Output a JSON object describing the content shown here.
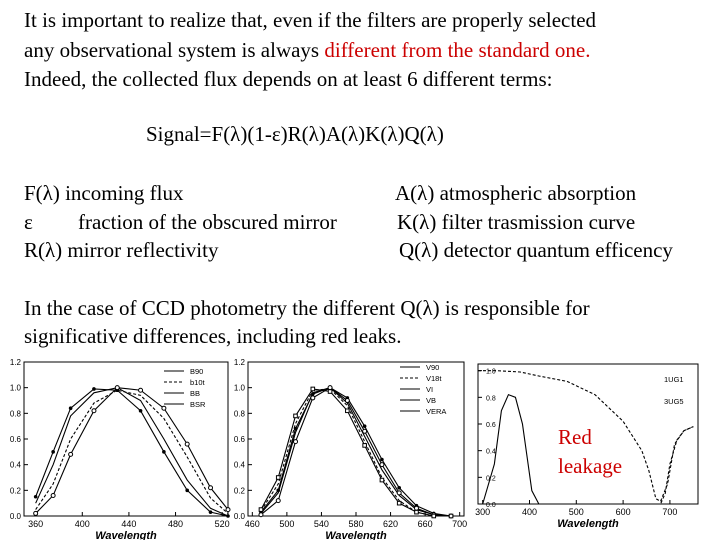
{
  "intro": {
    "line1": "It is important to realize that, even if the filters are properly selected",
    "line2_pre": "any observational system is always ",
    "line2_red": "different from the standard one.",
    "line3": "Indeed, the collected flux depends on at least 6 different terms:"
  },
  "formula": "Signal=F(λ)(1-ε)R(λ)A(λ)K(λ)Q(λ)",
  "terms": {
    "f": "F(λ)  incoming flux",
    "eps_sym": "ε",
    "eps_desc": "fraction of the obscured mirror",
    "r": "R(λ) mirror reflectivity",
    "a": "A(λ) atmospheric absorption",
    "k": "K(λ) filter trasmission curve",
    "q": "Q(λ) detector quantum efficency"
  },
  "ccd": {
    "line1": "In the case of CCD photometry the different Q(λ) is responsible for",
    "line2": "significative differences, including red leaks."
  },
  "colors": {
    "accent_red": "#cc0000",
    "text": "#000000"
  },
  "chart_data": [
    {
      "type": "line",
      "xlabel": "Wavelength",
      "xticks": [
        "360",
        "400",
        "440",
        "480",
        "520"
      ],
      "yticks": [
        "0.0",
        "0.2",
        "0.4",
        "0.6",
        "0.8",
        "1.0",
        "1.2"
      ],
      "xlim": [
        350,
        525
      ],
      "ylim": [
        0,
        1.2
      ],
      "legend_position": "top-right",
      "legend": [
        "B90",
        "b10t",
        "BB",
        "BSR"
      ],
      "series": [
        {
          "name": "B90",
          "x": [
            360,
            375,
            390,
            410,
            430,
            450,
            470,
            490,
            510,
            525
          ],
          "y": [
            0.1,
            0.4,
            0.78,
            0.96,
            1.0,
            0.9,
            0.6,
            0.28,
            0.06,
            0.0
          ]
        },
        {
          "name": "b10t",
          "x": [
            360,
            375,
            390,
            410,
            430,
            450,
            470,
            490,
            510,
            525
          ],
          "y": [
            0.05,
            0.25,
            0.6,
            0.88,
            0.98,
            0.94,
            0.76,
            0.46,
            0.14,
            0.02
          ]
        },
        {
          "name": "BB",
          "x": [
            360,
            375,
            390,
            410,
            430,
            450,
            470,
            490,
            510,
            525
          ],
          "y": [
            0.15,
            0.5,
            0.84,
            0.99,
            0.98,
            0.82,
            0.5,
            0.2,
            0.03,
            0.0
          ]
        },
        {
          "name": "BSR",
          "x": [
            360,
            375,
            390,
            410,
            430,
            450,
            470,
            490,
            510,
            525
          ],
          "y": [
            0.02,
            0.16,
            0.48,
            0.82,
            1.0,
            0.98,
            0.84,
            0.56,
            0.22,
            0.05
          ]
        }
      ]
    },
    {
      "type": "line",
      "xlabel": "Wavelength",
      "xticks": [
        "460",
        "500",
        "540",
        "580",
        "620",
        "660",
        "700"
      ],
      "yticks": [
        "0.0",
        "0.2",
        "0.4",
        "0.6",
        "0.8",
        "1.0",
        "1.2"
      ],
      "xlim": [
        455,
        705
      ],
      "ylim": [
        0,
        1.2
      ],
      "legend_position": "top-right",
      "legend": [
        "V90",
        "V18t",
        "VI",
        "VB",
        "VERA"
      ],
      "series": [
        {
          "name": "V90",
          "x": [
            470,
            490,
            510,
            530,
            550,
            570,
            590,
            610,
            630,
            650,
            670,
            690
          ],
          "y": [
            0.02,
            0.18,
            0.65,
            0.96,
            1.0,
            0.88,
            0.62,
            0.36,
            0.16,
            0.05,
            0.01,
            0.0
          ]
        },
        {
          "name": "V18t",
          "x": [
            470,
            490,
            510,
            530,
            550,
            570,
            590,
            610,
            630,
            650,
            670,
            690
          ],
          "y": [
            0.04,
            0.25,
            0.72,
            0.98,
            0.99,
            0.86,
            0.58,
            0.3,
            0.12,
            0.03,
            0.0,
            0.0
          ]
        },
        {
          "name": "VI",
          "x": [
            470,
            490,
            510,
            530,
            550,
            570,
            590,
            610,
            630,
            650,
            670,
            690
          ],
          "y": [
            0.03,
            0.2,
            0.68,
            0.95,
            1.0,
            0.92,
            0.7,
            0.44,
            0.22,
            0.08,
            0.02,
            0.0
          ]
        },
        {
          "name": "VB",
          "x": [
            470,
            490,
            510,
            530,
            550,
            570,
            590,
            610,
            630,
            650,
            670,
            690
          ],
          "y": [
            0.01,
            0.12,
            0.58,
            0.92,
            1.0,
            0.9,
            0.66,
            0.4,
            0.18,
            0.06,
            0.01,
            0.0
          ]
        },
        {
          "name": "VERA",
          "x": [
            470,
            490,
            510,
            530,
            550,
            570,
            590,
            610,
            630,
            650,
            670,
            690
          ],
          "y": [
            0.05,
            0.3,
            0.78,
            0.99,
            0.97,
            0.82,
            0.55,
            0.28,
            0.1,
            0.03,
            0.0,
            0.0
          ]
        }
      ]
    },
    {
      "type": "line",
      "xlabel": "Wavelength",
      "xticks": [
        "300",
        "400",
        "500",
        "600",
        "700"
      ],
      "yticks": [
        "0.0",
        "0.2",
        "0.4",
        "0.6",
        "0.8",
        "1.0"
      ],
      "xlim": [
        290,
        760
      ],
      "ylim": [
        0,
        1.05
      ],
      "legend_position": "right",
      "legend": [
        "1UG1",
        "3UG5"
      ],
      "series": [
        {
          "name": "1UG1",
          "x": [
            300,
            325,
            340,
            355,
            370,
            385,
            395,
            405,
            420
          ],
          "y": [
            0.0,
            0.3,
            0.7,
            0.82,
            0.8,
            0.6,
            0.35,
            0.1,
            0.0
          ]
        },
        {
          "name": "3UG5",
          "x": [
            290,
            330,
            380,
            420,
            480,
            540,
            600,
            640,
            655,
            670,
            680,
            695,
            710,
            730,
            750
          ],
          "y": [
            1.0,
            1.0,
            0.99,
            0.96,
            0.92,
            0.82,
            0.62,
            0.4,
            0.25,
            0.04,
            0.02,
            0.15,
            0.45,
            0.55,
            0.58
          ]
        },
        {
          "name": "3UG5",
          "x": [
            650,
            660,
            670,
            680,
            690,
            700,
            715,
            730,
            750
          ],
          "y": [
            0.0,
            0.0,
            0.0,
            0.0,
            0.08,
            0.3,
            0.48,
            0.55,
            0.58
          ]
        }
      ],
      "annotation": "Red\nleakage"
    }
  ]
}
